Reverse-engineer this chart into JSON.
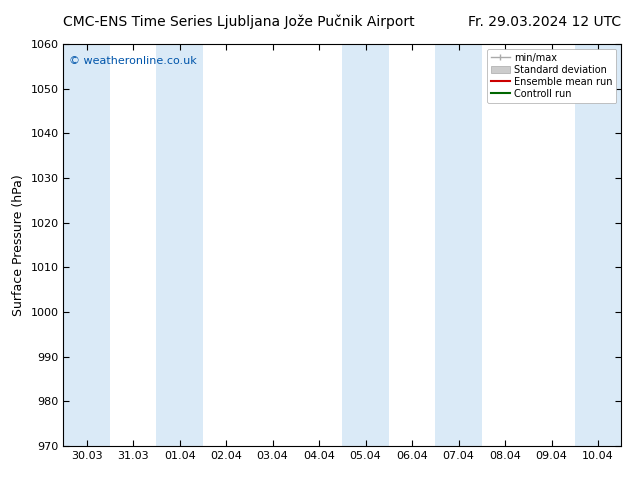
{
  "title_left": "CMC-ENS Time Series Ljubljana Jože Pučnik Airport",
  "title_right": "Fr. 29.03.2024 12 UTC",
  "ylabel": "Surface Pressure (hPa)",
  "ylim": [
    970,
    1060
  ],
  "yticks": [
    970,
    980,
    990,
    1000,
    1010,
    1020,
    1030,
    1040,
    1050,
    1060
  ],
  "xlabels": [
    "30.03",
    "31.03",
    "01.04",
    "02.04",
    "03.04",
    "04.04",
    "05.04",
    "06.04",
    "07.04",
    "08.04",
    "09.04",
    "10.04"
  ],
  "copyright": "© weatheronline.co.uk",
  "copyright_color": "#0055aa",
  "bg_color": "#ffffff",
  "plot_bg_color": "#ffffff",
  "band_color": "#daeaf7",
  "band_indices": [
    0,
    2,
    6,
    8,
    11
  ],
  "legend_entries": [
    "min/max",
    "Standard deviation",
    "Ensemble mean run",
    "Controll run"
  ],
  "legend_line_color": "#aaaaaa",
  "legend_fill_color": "#cccccc",
  "legend_red": "#cc0000",
  "legend_green": "#006600",
  "title_fontsize": 10,
  "tick_fontsize": 8,
  "ylabel_fontsize": 9,
  "copyright_fontsize": 8
}
